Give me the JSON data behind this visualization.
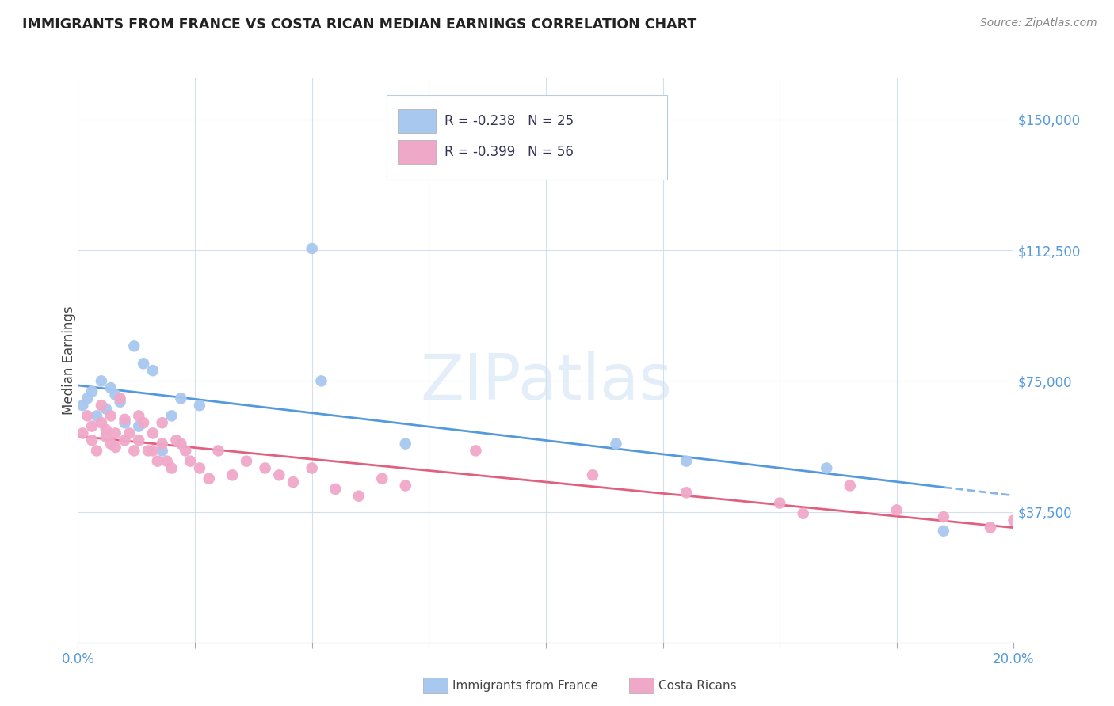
{
  "title": "IMMIGRANTS FROM FRANCE VS COSTA RICAN MEDIAN EARNINGS CORRELATION CHART",
  "source": "Source: ZipAtlas.com",
  "ylabel": "Median Earnings",
  "xrange": [
    0.0,
    0.2
  ],
  "yrange": [
    0,
    162000
  ],
  "blue_color": "#a8c8f0",
  "pink_color": "#f0a8c8",
  "line_blue": "#5599dd",
  "line_pink": "#e06080",
  "ytick_vals": [
    0,
    37500,
    75000,
    112500,
    150000
  ],
  "ytick_labels": [
    "",
    "$37,500",
    "$75,000",
    "$112,500",
    "$150,000"
  ],
  "blue_scatter_x": [
    0.001,
    0.002,
    0.003,
    0.004,
    0.005,
    0.006,
    0.007,
    0.008,
    0.009,
    0.01,
    0.012,
    0.014,
    0.016,
    0.018,
    0.02,
    0.022,
    0.026,
    0.05,
    0.052,
    0.07,
    0.115,
    0.13,
    0.16,
    0.185,
    0.013
  ],
  "blue_scatter_y": [
    68000,
    70000,
    72000,
    65000,
    75000,
    67000,
    73000,
    71000,
    69000,
    63000,
    85000,
    80000,
    78000,
    55000,
    65000,
    70000,
    68000,
    113000,
    75000,
    57000,
    57000,
    52000,
    50000,
    32000,
    62000
  ],
  "pink_scatter_x": [
    0.001,
    0.002,
    0.003,
    0.003,
    0.004,
    0.005,
    0.005,
    0.006,
    0.006,
    0.007,
    0.007,
    0.008,
    0.008,
    0.009,
    0.01,
    0.01,
    0.011,
    0.012,
    0.013,
    0.013,
    0.014,
    0.015,
    0.016,
    0.016,
    0.017,
    0.018,
    0.018,
    0.019,
    0.02,
    0.021,
    0.022,
    0.023,
    0.024,
    0.026,
    0.028,
    0.03,
    0.033,
    0.036,
    0.04,
    0.043,
    0.046,
    0.05,
    0.055,
    0.06,
    0.065,
    0.07,
    0.085,
    0.11,
    0.13,
    0.15,
    0.155,
    0.165,
    0.175,
    0.185,
    0.195,
    0.2
  ],
  "pink_scatter_y": [
    60000,
    65000,
    62000,
    58000,
    55000,
    63000,
    68000,
    61000,
    59000,
    57000,
    65000,
    60000,
    56000,
    70000,
    64000,
    58000,
    60000,
    55000,
    65000,
    58000,
    63000,
    55000,
    60000,
    55000,
    52000,
    63000,
    57000,
    52000,
    50000,
    58000,
    57000,
    55000,
    52000,
    50000,
    47000,
    55000,
    48000,
    52000,
    50000,
    48000,
    46000,
    50000,
    44000,
    42000,
    47000,
    45000,
    55000,
    48000,
    43000,
    40000,
    37000,
    45000,
    38000,
    36000,
    33000,
    35000
  ],
  "watermark": "ZIPatlas",
  "legend_r_blue": "R = -0.238",
  "legend_n_blue": "N = 25",
  "legend_r_pink": "R = -0.399",
  "legend_n_pink": "N = 56",
  "legend_label_blue": "Immigrants from France",
  "legend_label_pink": "Costa Ricans"
}
